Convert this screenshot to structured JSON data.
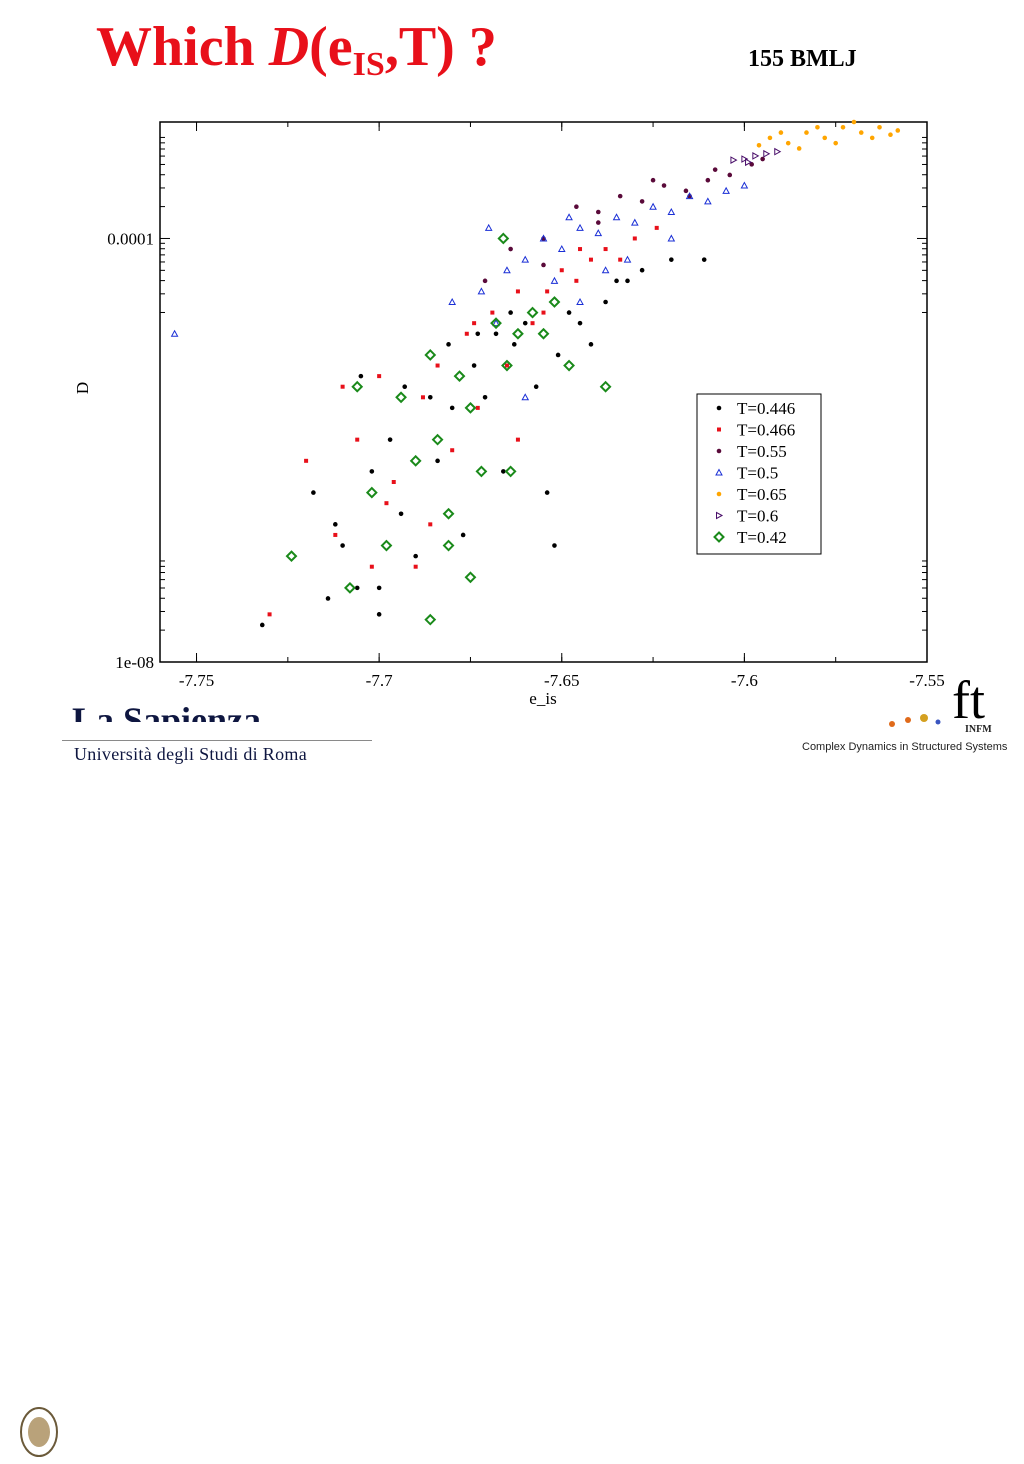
{
  "slide": {
    "title_prefix": "Which ",
    "title_D": "D",
    "title_open": "(e",
    "title_sub": "IS",
    "title_close": ",T) ?",
    "system_label": "155 BMLJ"
  },
  "footer": {
    "university_name": "La Sapienza",
    "university_sub": "Università degli Studi di Roma",
    "infm_text": "INFM",
    "lab_name": "Complex Dynamics in Structured Systems"
  },
  "chart_data": {
    "type": "scatter",
    "title": "",
    "xlabel": "e_is",
    "ylabel": "D",
    "xlim": [
      -7.76,
      -7.55
    ],
    "ylim_log10": [
      -8,
      -2.9
    ],
    "y_scale": "log",
    "x_ticks": [
      -7.75,
      -7.7,
      -7.65,
      -7.6,
      -7.55
    ],
    "x_tick_labels": [
      "-7.75",
      "-7.7",
      "-7.65",
      "-7.6",
      "-7.55"
    ],
    "y_ticks": [
      1e-08,
      0.0001
    ],
    "y_tick_labels": [
      "1e-08",
      "0.0001"
    ],
    "grid": false,
    "legend_position": "lower-right",
    "series": [
      {
        "name": "T=0.446",
        "color": "#000000",
        "marker": "dot",
        "points": [
          [
            -7.732,
            -7.65
          ],
          [
            -7.718,
            -6.4
          ],
          [
            -7.714,
            -7.4
          ],
          [
            -7.71,
            -6.9
          ],
          [
            -7.706,
            -7.3
          ],
          [
            -7.702,
            -6.2
          ],
          [
            -7.7,
            -7.55
          ],
          [
            -7.697,
            -5.9
          ],
          [
            -7.694,
            -6.6
          ],
          [
            -7.69,
            -7.0
          ],
          [
            -7.686,
            -5.5
          ],
          [
            -7.684,
            -6.1
          ],
          [
            -7.68,
            -5.6
          ],
          [
            -7.677,
            -6.8
          ],
          [
            -7.674,
            -5.2
          ],
          [
            -7.671,
            -5.5
          ],
          [
            -7.668,
            -4.9
          ],
          [
            -7.666,
            -6.2
          ],
          [
            -7.663,
            -5.0
          ],
          [
            -7.66,
            -4.8
          ],
          [
            -7.657,
            -5.4
          ],
          [
            -7.654,
            -6.4
          ],
          [
            -7.651,
            -5.1
          ],
          [
            -7.648,
            -4.7
          ],
          [
            -7.645,
            -4.8
          ],
          [
            -7.642,
            -5.0
          ],
          [
            -7.638,
            -4.6
          ],
          [
            -7.635,
            -4.4
          ],
          [
            -7.632,
            -4.4
          ],
          [
            -7.628,
            -4.3
          ],
          [
            -7.62,
            -4.2
          ],
          [
            -7.611,
            -4.2
          ],
          [
            -7.705,
            -5.3
          ],
          [
            -7.693,
            -5.4
          ],
          [
            -7.681,
            -5.0
          ],
          [
            -7.673,
            -4.9
          ],
          [
            -7.664,
            -4.7
          ],
          [
            -7.652,
            -6.9
          ],
          [
            -7.7,
            -7.3
          ],
          [
            -7.712,
            -6.7
          ]
        ]
      },
      {
        "name": "T=0.466",
        "color": "#e8101a",
        "marker": "square",
        "points": [
          [
            -7.73,
            -7.55
          ],
          [
            -7.72,
            -6.1
          ],
          [
            -7.712,
            -6.8
          ],
          [
            -7.706,
            -5.9
          ],
          [
            -7.7,
            -5.3
          ],
          [
            -7.696,
            -6.3
          ],
          [
            -7.69,
            -7.1
          ],
          [
            -7.688,
            -5.5
          ],
          [
            -7.684,
            -5.2
          ],
          [
            -7.68,
            -6.0
          ],
          [
            -7.676,
            -4.9
          ],
          [
            -7.673,
            -5.6
          ],
          [
            -7.669,
            -4.7
          ],
          [
            -7.665,
            -5.2
          ],
          [
            -7.662,
            -4.5
          ],
          [
            -7.658,
            -4.8
          ],
          [
            -7.654,
            -4.5
          ],
          [
            -7.65,
            -4.3
          ],
          [
            -7.646,
            -4.4
          ],
          [
            -7.642,
            -4.2
          ],
          [
            -7.638,
            -4.1
          ],
          [
            -7.634,
            -4.2
          ],
          [
            -7.63,
            -4.0
          ],
          [
            -7.624,
            -3.9
          ],
          [
            -7.698,
            -6.5
          ],
          [
            -7.686,
            -6.7
          ],
          [
            -7.674,
            -4.8
          ],
          [
            -7.662,
            -5.9
          ],
          [
            -7.655,
            -4.7
          ],
          [
            -7.645,
            -4.1
          ],
          [
            -7.71,
            -5.4
          ],
          [
            -7.702,
            -7.1
          ]
        ]
      },
      {
        "name": "T=0.55",
        "color": "#5a0a3a",
        "marker": "dot",
        "points": [
          [
            -7.671,
            -4.4
          ],
          [
            -7.664,
            -4.1
          ],
          [
            -7.655,
            -4.0
          ],
          [
            -7.646,
            -3.7
          ],
          [
            -7.64,
            -3.75
          ],
          [
            -7.634,
            -3.6
          ],
          [
            -7.628,
            -3.65
          ],
          [
            -7.622,
            -3.5
          ],
          [
            -7.616,
            -3.55
          ],
          [
            -7.61,
            -3.45
          ],
          [
            -7.604,
            -3.4
          ],
          [
            -7.598,
            -3.3
          ],
          [
            -7.595,
            -3.25
          ],
          [
            -7.64,
            -3.85
          ],
          [
            -7.625,
            -3.45
          ],
          [
            -7.655,
            -4.25
          ],
          [
            -7.615,
            -3.6
          ],
          [
            -7.608,
            -3.35
          ]
        ]
      },
      {
        "name": "T=0.5",
        "color": "#1a2fd6",
        "marker": "triangle",
        "points": [
          [
            -7.756,
            -4.9
          ],
          [
            -7.68,
            -4.6
          ],
          [
            -7.672,
            -4.5
          ],
          [
            -7.665,
            -4.3
          ],
          [
            -7.66,
            -4.2
          ],
          [
            -7.655,
            -4.0
          ],
          [
            -7.65,
            -4.1
          ],
          [
            -7.645,
            -3.9
          ],
          [
            -7.64,
            -3.95
          ],
          [
            -7.635,
            -3.8
          ],
          [
            -7.63,
            -3.85
          ],
          [
            -7.625,
            -3.7
          ],
          [
            -7.62,
            -3.75
          ],
          [
            -7.615,
            -3.6
          ],
          [
            -7.61,
            -3.65
          ],
          [
            -7.605,
            -3.55
          ],
          [
            -7.6,
            -3.5
          ],
          [
            -7.66,
            -5.5
          ],
          [
            -7.645,
            -4.6
          ],
          [
            -7.668,
            -4.8
          ],
          [
            -7.652,
            -4.4
          ],
          [
            -7.638,
            -4.3
          ],
          [
            -7.67,
            -3.9
          ],
          [
            -7.632,
            -4.2
          ],
          [
            -7.62,
            -4.0
          ],
          [
            -7.648,
            -3.8
          ]
        ]
      },
      {
        "name": "T=0.65",
        "color": "#ffa500",
        "marker": "dot",
        "points": [
          [
            -7.593,
            -3.05
          ],
          [
            -7.588,
            -3.1
          ],
          [
            -7.583,
            -3.0
          ],
          [
            -7.578,
            -3.05
          ],
          [
            -7.573,
            -2.95
          ],
          [
            -7.568,
            -3.0
          ],
          [
            -7.563,
            -2.95
          ],
          [
            -7.558,
            -2.98
          ],
          [
            -7.585,
            -3.15
          ],
          [
            -7.575,
            -3.1
          ],
          [
            -7.565,
            -3.05
          ],
          [
            -7.57,
            -2.9
          ],
          [
            -7.58,
            -2.95
          ],
          [
            -7.59,
            -3.0
          ],
          [
            -7.56,
            -3.02
          ],
          [
            -7.596,
            -3.12
          ]
        ]
      },
      {
        "name": "T=0.6",
        "color": "#4a0f6a",
        "marker": "triangle-right",
        "points": [
          [
            -7.6,
            -3.25
          ],
          [
            -7.597,
            -3.22
          ],
          [
            -7.594,
            -3.2
          ],
          [
            -7.599,
            -3.28
          ],
          [
            -7.591,
            -3.18
          ],
          [
            -7.603,
            -3.26
          ]
        ]
      },
      {
        "name": "T=0.42",
        "color": "#1a8a1a",
        "marker": "diamond",
        "points": [
          [
            -7.724,
            -7.0
          ],
          [
            -7.708,
            -7.3
          ],
          [
            -7.706,
            -5.4
          ],
          [
            -7.702,
            -6.4
          ],
          [
            -7.698,
            -6.9
          ],
          [
            -7.694,
            -5.5
          ],
          [
            -7.69,
            -6.1
          ],
          [
            -7.686,
            -7.6
          ],
          [
            -7.684,
            -5.9
          ],
          [
            -7.681,
            -6.6
          ],
          [
            -7.678,
            -5.3
          ],
          [
            -7.675,
            -5.6
          ],
          [
            -7.672,
            -6.2
          ],
          [
            -7.668,
            -4.8
          ],
          [
            -7.665,
            -5.2
          ],
          [
            -7.662,
            -4.9
          ],
          [
            -7.658,
            -4.7
          ],
          [
            -7.655,
            -4.9
          ],
          [
            -7.652,
            -4.6
          ],
          [
            -7.648,
            -5.2
          ],
          [
            -7.638,
            -5.4
          ],
          [
            -7.666,
            -4.0
          ],
          [
            -7.686,
            -5.1
          ],
          [
            -7.675,
            -7.2
          ],
          [
            -7.664,
            -6.2
          ],
          [
            -7.681,
            -6.9
          ]
        ]
      }
    ]
  }
}
